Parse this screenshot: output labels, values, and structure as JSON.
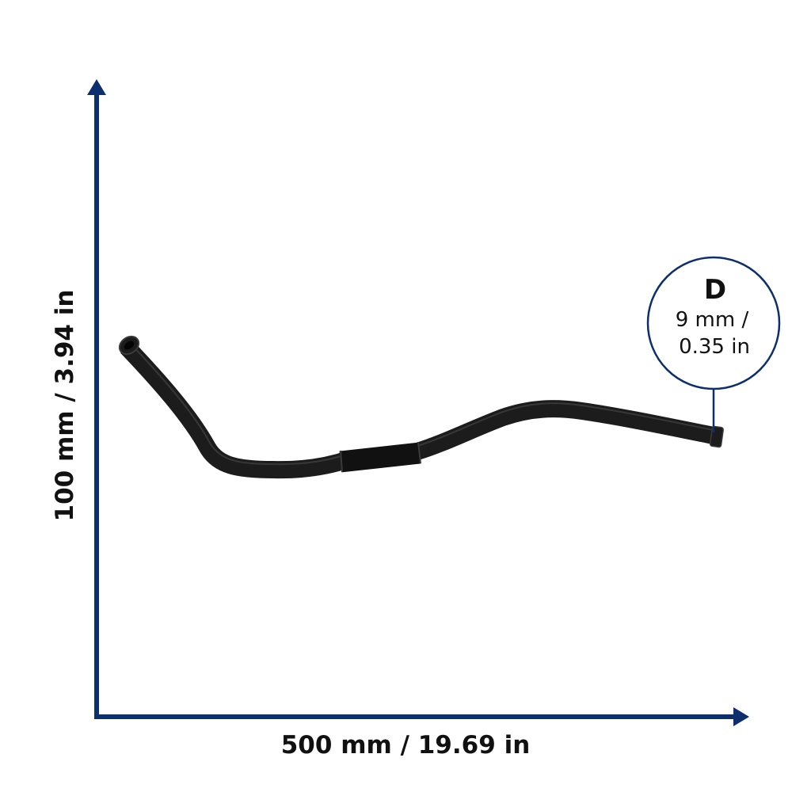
{
  "dimensions": {
    "width_label": "500 mm / 19.69 in",
    "height_label": "100 mm / 3.94 in"
  },
  "diameter_callout": {
    "letter": "D",
    "line1": "9 mm /",
    "line2": "0.35 in"
  },
  "colors": {
    "axis": "#0d2f6e",
    "hose": "#1c1c1c",
    "hose_highlight": "#4a4a4a",
    "text": "#111111"
  }
}
